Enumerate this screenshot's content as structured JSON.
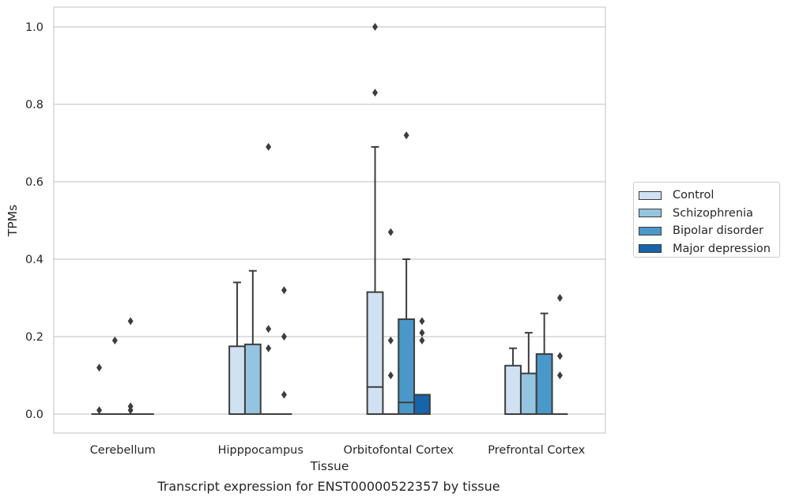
{
  "chart_data": {
    "type": "box",
    "caption": "Transcript expression for ENST00000522357 by tissue",
    "xlabel": "Tissue",
    "ylabel": "TPMs",
    "ylim": [
      -0.048,
      1.05
    ],
    "yticks": [
      "0.0",
      "0.2",
      "0.4",
      "0.6",
      "0.8",
      "1.0"
    ],
    "grid": "horizontal",
    "legend_position": "right",
    "categories": [
      "Cerebellum",
      "Hipppocampus",
      "Orbitofontal Cortex",
      "Prefrontal Cortex"
    ],
    "series": [
      {
        "name": "Control",
        "color": "#d0e1f2",
        "boxes": [
          {
            "q1": 0,
            "median": 0,
            "q3": 0,
            "whisker_low": 0,
            "whisker_high": 0,
            "outliers": [
              0.12,
              0.01
            ]
          },
          {
            "q1": 0,
            "median": 0,
            "q3": 0.175,
            "whisker_low": 0,
            "whisker_high": 0.34,
            "outliers": []
          },
          {
            "q1": 0,
            "median": 0.07,
            "q3": 0.315,
            "whisker_low": 0,
            "whisker_high": 0.69,
            "outliers": [
              1.0,
              0.83
            ]
          },
          {
            "q1": 0,
            "median": 0,
            "q3": 0.125,
            "whisker_low": 0,
            "whisker_high": 0.17,
            "outliers": []
          }
        ]
      },
      {
        "name": "Schizophrenia",
        "color": "#94c4df",
        "boxes": [
          {
            "q1": 0,
            "median": 0,
            "q3": 0,
            "whisker_low": 0,
            "whisker_high": 0,
            "outliers": [
              0.19
            ]
          },
          {
            "q1": 0,
            "median": 0,
            "q3": 0.18,
            "whisker_low": 0,
            "whisker_high": 0.37,
            "outliers": []
          },
          {
            "q1": 0,
            "median": 0,
            "q3": 0,
            "whisker_low": 0,
            "whisker_high": 0,
            "outliers": [
              0.47,
              0.19,
              0.1
            ]
          },
          {
            "q1": 0,
            "median": 0,
            "q3": 0.105,
            "whisker_low": 0,
            "whisker_high": 0.21,
            "outliers": []
          }
        ]
      },
      {
        "name": "Bipolar disorder",
        "color": "#4a98c9",
        "boxes": [
          {
            "q1": 0,
            "median": 0,
            "q3": 0,
            "whisker_low": 0,
            "whisker_high": 0,
            "outliers": [
              0.24,
              0.02,
              0.01
            ]
          },
          {
            "q1": 0,
            "median": 0,
            "q3": 0,
            "whisker_low": 0,
            "whisker_high": 0,
            "outliers": [
              0.69,
              0.22,
              0.17
            ]
          },
          {
            "q1": 0,
            "median": 0.03,
            "q3": 0.245,
            "whisker_low": 0,
            "whisker_high": 0.4,
            "outliers": [
              0.72
            ]
          },
          {
            "q1": 0,
            "median": 0,
            "q3": 0.155,
            "whisker_low": 0,
            "whisker_high": 0.26,
            "outliers": []
          }
        ]
      },
      {
        "name": "Major depression",
        "color": "#1764ab",
        "boxes": [
          {
            "q1": 0,
            "median": 0,
            "q3": 0,
            "whisker_low": 0,
            "whisker_high": 0,
            "outliers": []
          },
          {
            "q1": 0,
            "median": 0,
            "q3": 0,
            "whisker_low": 0,
            "whisker_high": 0,
            "outliers": [
              0.32,
              0.2,
              0.05
            ]
          },
          {
            "q1": 0,
            "median": 0,
            "q3": 0.05,
            "whisker_low": 0,
            "whisker_high": 0.05,
            "outliers": [
              0.24,
              0.21,
              0.19
            ]
          },
          {
            "q1": 0,
            "median": 0,
            "q3": 0,
            "whisker_low": 0,
            "whisker_high": 0,
            "outliers": [
              0.3,
              0.15,
              0.1
            ]
          }
        ]
      }
    ]
  }
}
